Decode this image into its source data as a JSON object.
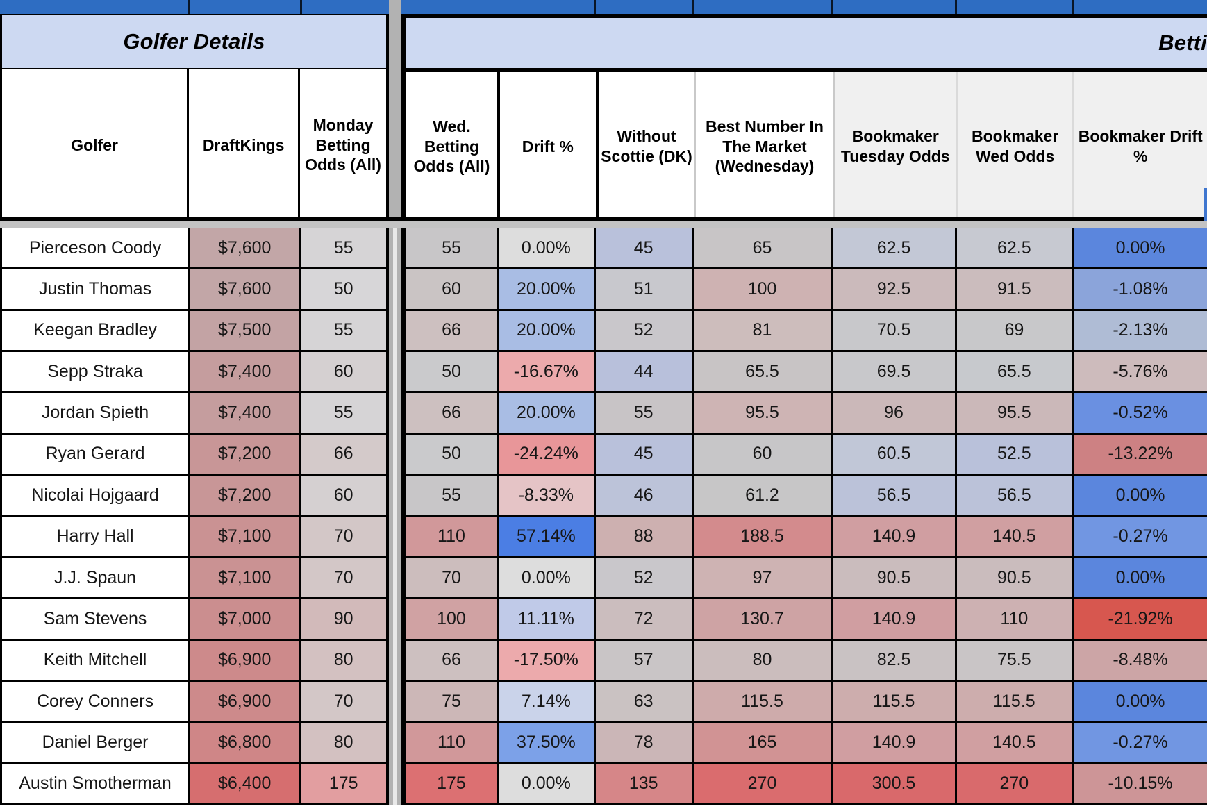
{
  "left_section": {
    "title": "Golfer Details",
    "columns": [
      {
        "key": "golfer",
        "label": "Golfer"
      },
      {
        "key": "dk",
        "label": "DraftKings"
      },
      {
        "key": "monday",
        "label": "Monday Betting Odds (All)"
      }
    ]
  },
  "right_section": {
    "title": "Betti",
    "columns": [
      {
        "key": "wed",
        "label": "Wed. Betting Odds (All)"
      },
      {
        "key": "drift",
        "label": "Drift %"
      },
      {
        "key": "without",
        "label": "Without Scottie (DK)"
      },
      {
        "key": "best",
        "label": "Best Number In The Market (Wednesday)"
      },
      {
        "key": "tue",
        "label": "Bookmaker Tuesday Odds"
      },
      {
        "key": "wedodds",
        "label": "Bookmaker Wed Odds"
      },
      {
        "key": "bkdrift",
        "label": "Bookmaker Drift %"
      }
    ]
  },
  "colors": {
    "top_bar_blue": "#2e6dc2",
    "group_header_blue": "#cdd9f2",
    "bookmaker_header_gray": "#f0f0f0",
    "strong_drift_blue": "#5b86dd",
    "strong_drift_red": "#d7574f",
    "pane_divider_gray": "#b2b2b2"
  },
  "rows": [
    {
      "golfer": "Pierceson Coody",
      "dk": {
        "v": "$7,600",
        "bg": "#c2a6a7"
      },
      "monday": {
        "v": "55",
        "bg": "#d6d4d6"
      },
      "wed": {
        "v": "55",
        "bg": "#c8c6c8"
      },
      "drift": {
        "v": "0.00%",
        "bg": "#dddddd"
      },
      "without": {
        "v": "45",
        "bg": "#b9c1db"
      },
      "best": {
        "v": "65",
        "bg": "#c8c5c6"
      },
      "tue": {
        "v": "62.5",
        "bg": "#c3c8d6"
      },
      "wedodds": {
        "v": "62.5",
        "bg": "#c7c9d1"
      },
      "bkdrift": {
        "v": "0.00%",
        "bg": "#5b86dd"
      }
    },
    {
      "golfer": "Justin Thomas",
      "dk": {
        "v": "$7,600",
        "bg": "#c2a6a7"
      },
      "monday": {
        "v": "50",
        "bg": "#d7d6d8"
      },
      "wed": {
        "v": "60",
        "bg": "#cac4c4"
      },
      "drift": {
        "v": "20.00%",
        "bg": "#a9bde4"
      },
      "without": {
        "v": "51",
        "bg": "#c8c8cd"
      },
      "best": {
        "v": "100",
        "bg": "#ceb2b2"
      },
      "tue": {
        "v": "92.5",
        "bg": "#cbbabb"
      },
      "wedodds": {
        "v": "91.5",
        "bg": "#cbbcbd"
      },
      "bkdrift": {
        "v": "-1.08%",
        "bg": "#8ba4da"
      }
    },
    {
      "golfer": "Keegan Bradley",
      "dk": {
        "v": "$7,500",
        "bg": "#c3a3a4"
      },
      "monday": {
        "v": "55",
        "bg": "#d6d4d6"
      },
      "wed": {
        "v": "66",
        "bg": "#cdc0c0"
      },
      "drift": {
        "v": "20.00%",
        "bg": "#a9bde4"
      },
      "without": {
        "v": "52",
        "bg": "#c9c7cb"
      },
      "best": {
        "v": "81",
        "bg": "#cdbdbc"
      },
      "tue": {
        "v": "70.5",
        "bg": "#c8c8cb"
      },
      "wedodds": {
        "v": "69",
        "bg": "#c8c8ca"
      },
      "bkdrift": {
        "v": "-2.13%",
        "bg": "#afbcd5"
      }
    },
    {
      "golfer": "Sepp Straka",
      "dk": {
        "v": "$7,400",
        "bg": "#c59d9e"
      },
      "monday": {
        "v": "60",
        "bg": "#d5d0d1"
      },
      "wed": {
        "v": "50",
        "bg": "#cacacc"
      },
      "drift": {
        "v": "-16.67%",
        "bg": "#ecaaac"
      },
      "without": {
        "v": "44",
        "bg": "#b8c0db"
      },
      "best": {
        "v": "65.5",
        "bg": "#c8c4c5"
      },
      "tue": {
        "v": "69.5",
        "bg": "#c8c8cb"
      },
      "wedodds": {
        "v": "65.5",
        "bg": "#c7c9cd"
      },
      "bkdrift": {
        "v": "-5.76%",
        "bg": "#cdbbbc"
      }
    },
    {
      "golfer": "Jordan Spieth",
      "dk": {
        "v": "$7,400",
        "bg": "#c59d9e"
      },
      "monday": {
        "v": "55",
        "bg": "#d6d4d6"
      },
      "wed": {
        "v": "66",
        "bg": "#cdc0c0"
      },
      "drift": {
        "v": "20.00%",
        "bg": "#a9bde4"
      },
      "without": {
        "v": "55",
        "bg": "#c8c4c6"
      },
      "best": {
        "v": "95.5",
        "bg": "#ceb4b4"
      },
      "tue": {
        "v": "96",
        "bg": "#cbb8b9"
      },
      "wedodds": {
        "v": "95.5",
        "bg": "#cbb8b9"
      },
      "bkdrift": {
        "v": "-0.52%",
        "bg": "#6a90e1"
      }
    },
    {
      "golfer": "Ryan Gerard",
      "dk": {
        "v": "$7,200",
        "bg": "#c89697"
      },
      "monday": {
        "v": "66",
        "bg": "#d4caca"
      },
      "wed": {
        "v": "50",
        "bg": "#cacacc"
      },
      "drift": {
        "v": "-24.24%",
        "bg": "#e89699"
      },
      "without": {
        "v": "45",
        "bg": "#b9c1db"
      },
      "best": {
        "v": "60",
        "bg": "#c7c6c8"
      },
      "tue": {
        "v": "60.5",
        "bg": "#c1c7d7"
      },
      "wedodds": {
        "v": "52.5",
        "bg": "#b9c1da"
      },
      "bkdrift": {
        "v": "-13.22%",
        "bg": "#cd8183"
      }
    },
    {
      "golfer": "Nicolai Hojgaard",
      "dk": {
        "v": "$7,200",
        "bg": "#c89697"
      },
      "monday": {
        "v": "60",
        "bg": "#d5d0d1"
      },
      "wed": {
        "v": "55",
        "bg": "#c8c6c8"
      },
      "drift": {
        "v": "-8.33%",
        "bg": "#e5c4c6"
      },
      "without": {
        "v": "46",
        "bg": "#bcc3d9"
      },
      "best": {
        "v": "61.2",
        "bg": "#c7c6c7"
      },
      "tue": {
        "v": "56.5",
        "bg": "#bbc2d9"
      },
      "wedodds": {
        "v": "56.5",
        "bg": "#bbc2d9"
      },
      "bkdrift": {
        "v": "0.00%",
        "bg": "#5b86dd"
      }
    },
    {
      "golfer": "Harry Hall",
      "dk": {
        "v": "$7,100",
        "bg": "#ca9293"
      },
      "monday": {
        "v": "70",
        "bg": "#d3c7c7"
      },
      "wed": {
        "v": "110",
        "bg": "#d1989a"
      },
      "drift": {
        "v": "57.14%",
        "bg": "#4b7ee4"
      },
      "without": {
        "v": "88",
        "bg": "#cdb0b0"
      },
      "best": {
        "v": "188.5",
        "bg": "#d38b8d"
      },
      "tue": {
        "v": "140.9",
        "bg": "#d09ea1"
      },
      "wedodds": {
        "v": "140.5",
        "bg": "#d09fa1"
      },
      "bkdrift": {
        "v": "-0.27%",
        "bg": "#7196e2"
      }
    },
    {
      "golfer": "J.J. Spaun",
      "dk": {
        "v": "$7,100",
        "bg": "#ca9293"
      },
      "monday": {
        "v": "70",
        "bg": "#d3c7c7"
      },
      "wed": {
        "v": "70",
        "bg": "#ccbdbd"
      },
      "drift": {
        "v": "0.00%",
        "bg": "#dddddd"
      },
      "without": {
        "v": "52",
        "bg": "#c9c7cb"
      },
      "best": {
        "v": "97",
        "bg": "#ceb3b3"
      },
      "tue": {
        "v": "90.5",
        "bg": "#cabcbd"
      },
      "wedodds": {
        "v": "90.5",
        "bg": "#cabcbd"
      },
      "bkdrift": {
        "v": "0.00%",
        "bg": "#5b86dd"
      }
    },
    {
      "golfer": "Sam Stevens",
      "dk": {
        "v": "$7,000",
        "bg": "#cb8e8f"
      },
      "monday": {
        "v": "90",
        "bg": "#d2baba"
      },
      "wed": {
        "v": "100",
        "bg": "#d0a2a3"
      },
      "drift": {
        "v": "11.11%",
        "bg": "#c0cae8"
      },
      "without": {
        "v": "72",
        "bg": "#cbbdbe"
      },
      "best": {
        "v": "130.7",
        "bg": "#cea3a4"
      },
      "tue": {
        "v": "140.9",
        "bg": "#d09ea1"
      },
      "wedodds": {
        "v": "110",
        "bg": "#cdb1b2"
      },
      "bkdrift": {
        "v": "-21.92%",
        "bg": "#d7574f"
      }
    },
    {
      "golfer": "Keith Mitchell",
      "dk": {
        "v": "$6,900",
        "bg": "#cd8a8b"
      },
      "monday": {
        "v": "80",
        "bg": "#d3c1c1"
      },
      "wed": {
        "v": "66",
        "bg": "#cdc0c0"
      },
      "drift": {
        "v": "-17.50%",
        "bg": "#ecaaac"
      },
      "without": {
        "v": "57",
        "bg": "#c9c5c6"
      },
      "best": {
        "v": "80",
        "bg": "#cbbdbd"
      },
      "tue": {
        "v": "82.5",
        "bg": "#c9c2c3"
      },
      "wedodds": {
        "v": "75.5",
        "bg": "#c9c5c6"
      },
      "bkdrift": {
        "v": "-8.48%",
        "bg": "#cca5a6"
      }
    },
    {
      "golfer": "Corey Conners",
      "dk": {
        "v": "$6,900",
        "bg": "#cd8a8b"
      },
      "monday": {
        "v": "70",
        "bg": "#d3c7c7"
      },
      "wed": {
        "v": "75",
        "bg": "#ccb7b7"
      },
      "drift": {
        "v": "7.14%",
        "bg": "#cad3ea"
      },
      "without": {
        "v": "63",
        "bg": "#cac2c2"
      },
      "best": {
        "v": "115.5",
        "bg": "#ceabab"
      },
      "tue": {
        "v": "115.5",
        "bg": "#cdadad"
      },
      "wedodds": {
        "v": "115.5",
        "bg": "#cdadad"
      },
      "bkdrift": {
        "v": "0.00%",
        "bg": "#5b86dd"
      }
    },
    {
      "golfer": "Daniel Berger",
      "dk": {
        "v": "$6,800",
        "bg": "#cf8687"
      },
      "monday": {
        "v": "80",
        "bg": "#d3c1c1"
      },
      "wed": {
        "v": "110",
        "bg": "#d1989a"
      },
      "drift": {
        "v": "37.50%",
        "bg": "#7ca1e8"
      },
      "without": {
        "v": "78",
        "bg": "#cbb6b7"
      },
      "best": {
        "v": "165",
        "bg": "#d19394"
      },
      "tue": {
        "v": "140.9",
        "bg": "#d09ea1"
      },
      "wedodds": {
        "v": "140.5",
        "bg": "#d09fa1"
      },
      "bkdrift": {
        "v": "-0.27%",
        "bg": "#7196e2"
      }
    },
    {
      "golfer": "Austin Smotherman",
      "dk": {
        "v": "$6,400",
        "bg": "#d66e6f"
      },
      "monday": {
        "v": "175",
        "bg": "#e29ea0"
      },
      "wed": {
        "v": "175",
        "bg": "#dc7072"
      },
      "drift": {
        "v": "0.00%",
        "bg": "#dddddd"
      },
      "without": {
        "v": "135",
        "bg": "#d68688"
      },
      "best": {
        "v": "270",
        "bg": "#da6c6e"
      },
      "tue": {
        "v": "300.5",
        "bg": "#d9696b"
      },
      "wedodds": {
        "v": "270",
        "bg": "#d96a6c"
      },
      "bkdrift": {
        "v": "-10.15%",
        "bg": "#cd9597"
      }
    }
  ]
}
